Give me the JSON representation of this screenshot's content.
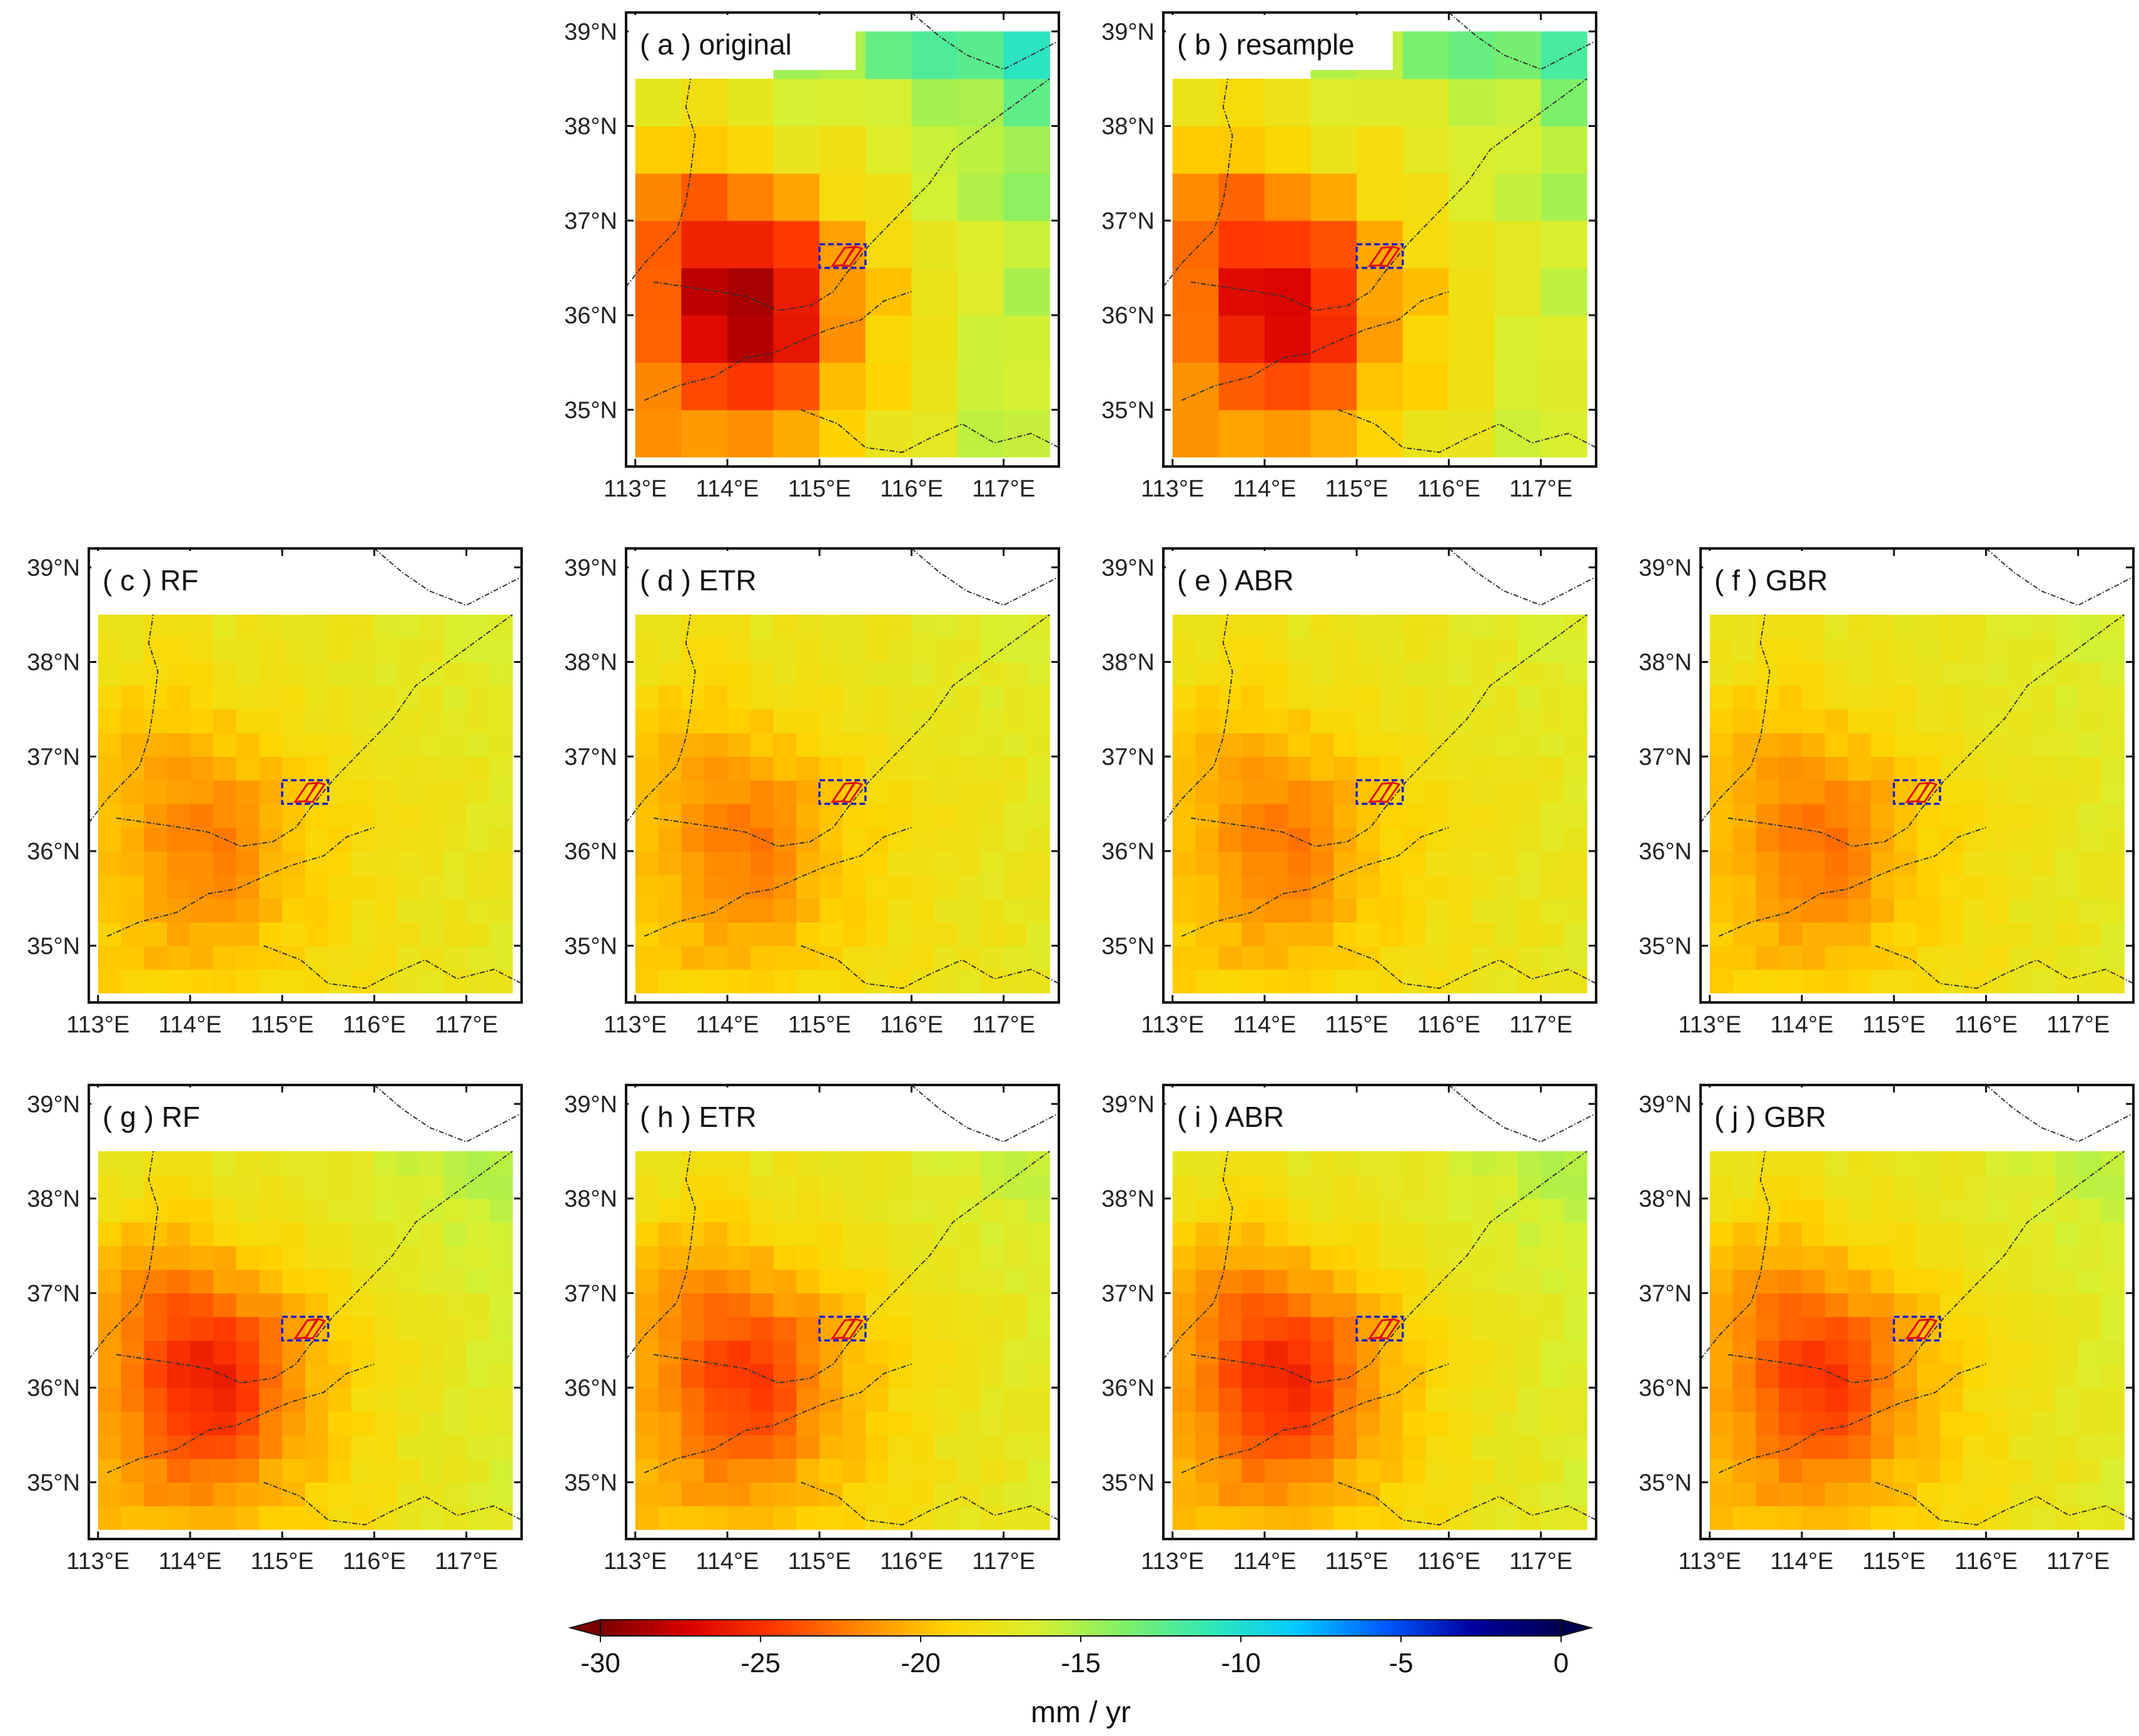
{
  "chart_data": {
    "type": "heatmap",
    "units": "mm / yr",
    "colorbar": {
      "min": -30,
      "max": 0,
      "ticks": [
        "-30",
        "-25",
        "-20",
        "-15",
        "-10",
        "-5",
        "0"
      ],
      "label": "mm / yr",
      "extend": "both",
      "colormap": [
        "#7a0000",
        "#d80000",
        "#ff3a00",
        "#ff8a00",
        "#ffd400",
        "#d8f030",
        "#7ef068",
        "#30e8b8",
        "#00c8ff",
        "#0058ff",
        "#00009e",
        "#000050"
      ]
    },
    "extent": {
      "lon_min": 112.9,
      "lon_max": 117.6,
      "lat_min": 34.4,
      "lat_max": 39.2,
      "data_lon": [
        113.0,
        117.5
      ],
      "data_lat": [
        34.5,
        38.5
      ]
    },
    "x_ticks": [
      "113°E",
      "114°E",
      "115°E",
      "116°E",
      "117°E"
    ],
    "y_ticks": [
      "35°N",
      "36°N",
      "37°N",
      "38°N",
      "39°N"
    ],
    "x_tick_values": [
      113,
      114,
      115,
      116,
      117
    ],
    "y_tick_values": [
      35,
      36,
      37,
      38,
      39
    ],
    "study_area_box": {
      "lon": [
        115.0,
        115.5
      ],
      "lat": [
        36.5,
        36.75
      ],
      "color": "#1c1ccc"
    },
    "panels": [
      {
        "id": "a",
        "label": "( a ) original",
        "resolution_deg": 0.5,
        "mean": -19,
        "hotspot_amp": 9,
        "dry_amp": 3.5,
        "wet_amp": 5.5
      },
      {
        "id": "b",
        "label": "( b ) resample",
        "resolution_deg": 0.5,
        "mean": -19,
        "hotspot_amp": 7.5,
        "dry_amp": 3.2,
        "wet_amp": 4.5
      },
      {
        "id": "c",
        "label": "( c ) RF",
        "resolution_deg": 0.25,
        "mean": -18.5,
        "hotspot_amp": 3.2,
        "dry_amp": 1.3,
        "wet_amp": 1.8
      },
      {
        "id": "d",
        "label": "( d ) ETR",
        "resolution_deg": 0.25,
        "mean": -18.5,
        "hotspot_amp": 3.4,
        "dry_amp": 1.3,
        "wet_amp": 1.8
      },
      {
        "id": "e",
        "label": "( e ) ABR",
        "resolution_deg": 0.25,
        "mean": -18.5,
        "hotspot_amp": 3.4,
        "dry_amp": 1.3,
        "wet_amp": 1.8
      },
      {
        "id": "f",
        "label": "( f ) GBR",
        "resolution_deg": 0.25,
        "mean": -18.5,
        "hotspot_amp": 3.6,
        "dry_amp": 1.4,
        "wet_amp": 2.0
      },
      {
        "id": "g",
        "label": "( g ) RF",
        "resolution_deg": 0.25,
        "mean": -19,
        "hotspot_amp": 6.0,
        "dry_amp": 2.2,
        "wet_amp": 3.5
      },
      {
        "id": "h",
        "label": "( h ) ETR",
        "resolution_deg": 0.25,
        "mean": -19,
        "hotspot_amp": 5.0,
        "dry_amp": 1.8,
        "wet_amp": 3.0
      },
      {
        "id": "i",
        "label": "( i ) ABR",
        "resolution_deg": 0.25,
        "mean": -19,
        "hotspot_amp": 5.8,
        "dry_amp": 2.0,
        "wet_amp": 3.5
      },
      {
        "id": "j",
        "label": "( j ) GBR",
        "resolution_deg": 0.25,
        "mean": -19,
        "hotspot_amp": 5.2,
        "dry_amp": 1.8,
        "wet_amp": 3.2
      }
    ]
  }
}
